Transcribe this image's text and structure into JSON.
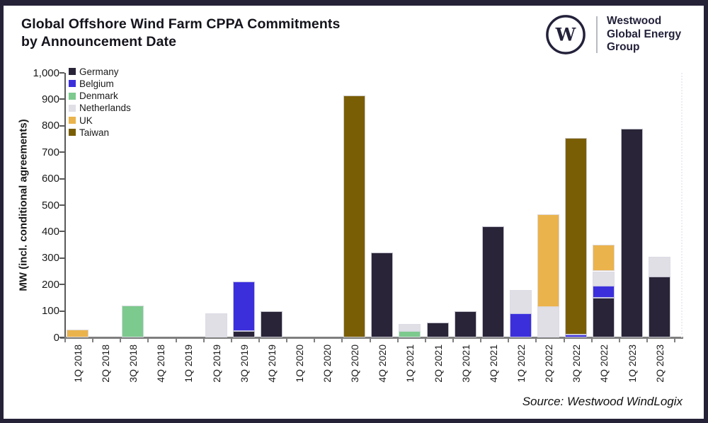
{
  "frame": {
    "border_color": "#252238",
    "background": "#ffffff"
  },
  "header": {
    "title_line1": "Global Offshore Wind Farm CPPA Commitments",
    "title_line2": "by Announcement Date",
    "logo": {
      "monogram": "W",
      "name_line1": "Westwood",
      "name_line2": "Global Energy",
      "name_line3": "Group"
    }
  },
  "chart_data": {
    "type": "bar",
    "stacked": true,
    "title": "Global Offshore Wind Farm CPPA Commitments by Announcement Date",
    "ylabel": "MW (incl. conditional agreements)",
    "xlabel": "",
    "ylim": [
      0,
      1000
    ],
    "ytick_step": 100,
    "grid": false,
    "legend_position": "top-left",
    "categories": [
      "1Q 2018",
      "2Q 2018",
      "3Q 2018",
      "4Q 2018",
      "1Q 2019",
      "2Q 2019",
      "3Q 2019",
      "4Q 2019",
      "1Q 2020",
      "2Q 2020",
      "3Q 2020",
      "4Q 2020",
      "1Q 2021",
      "2Q 2021",
      "3Q 2021",
      "4Q 2021",
      "1Q 2022",
      "2Q 2022",
      "3Q 2022",
      "4Q 2022",
      "1Q 2023",
      "2Q 2023"
    ],
    "series": [
      {
        "name": "Germany",
        "color": "#292437",
        "values": [
          0,
          0,
          0,
          0,
          0,
          0,
          25,
          100,
          0,
          0,
          0,
          320,
          0,
          55,
          100,
          420,
          0,
          0,
          0,
          150,
          790,
          230
        ]
      },
      {
        "name": "Belgium",
        "color": "#3b2fdc",
        "values": [
          0,
          0,
          0,
          0,
          0,
          0,
          185,
          0,
          0,
          0,
          0,
          0,
          0,
          0,
          0,
          0,
          90,
          0,
          10,
          45,
          0,
          0
        ]
      },
      {
        "name": "Denmark",
        "color": "#7dca8e",
        "values": [
          0,
          0,
          120,
          0,
          0,
          0,
          0,
          0,
          0,
          0,
          0,
          0,
          25,
          0,
          0,
          0,
          0,
          0,
          0,
          0,
          0,
          0
        ]
      },
      {
        "name": "Netherlands",
        "color": "#e0dfe5",
        "values": [
          0,
          0,
          0,
          0,
          0,
          90,
          0,
          0,
          0,
          0,
          0,
          0,
          25,
          0,
          0,
          0,
          90,
          115,
          0,
          55,
          0,
          75
        ]
      },
      {
        "name": "UK",
        "color": "#ebb34c",
        "values": [
          30,
          0,
          0,
          0,
          0,
          0,
          0,
          0,
          0,
          0,
          0,
          0,
          0,
          0,
          0,
          0,
          0,
          350,
          0,
          100,
          0,
          0
        ]
      },
      {
        "name": "Taiwan",
        "color": "#7a5e06",
        "values": [
          0,
          0,
          0,
          0,
          0,
          0,
          0,
          0,
          0,
          0,
          915,
          0,
          0,
          0,
          0,
          0,
          0,
          0,
          745,
          0,
          0,
          0
        ]
      }
    ]
  },
  "footer": {
    "source": "Source: Westwood WindLogix"
  }
}
